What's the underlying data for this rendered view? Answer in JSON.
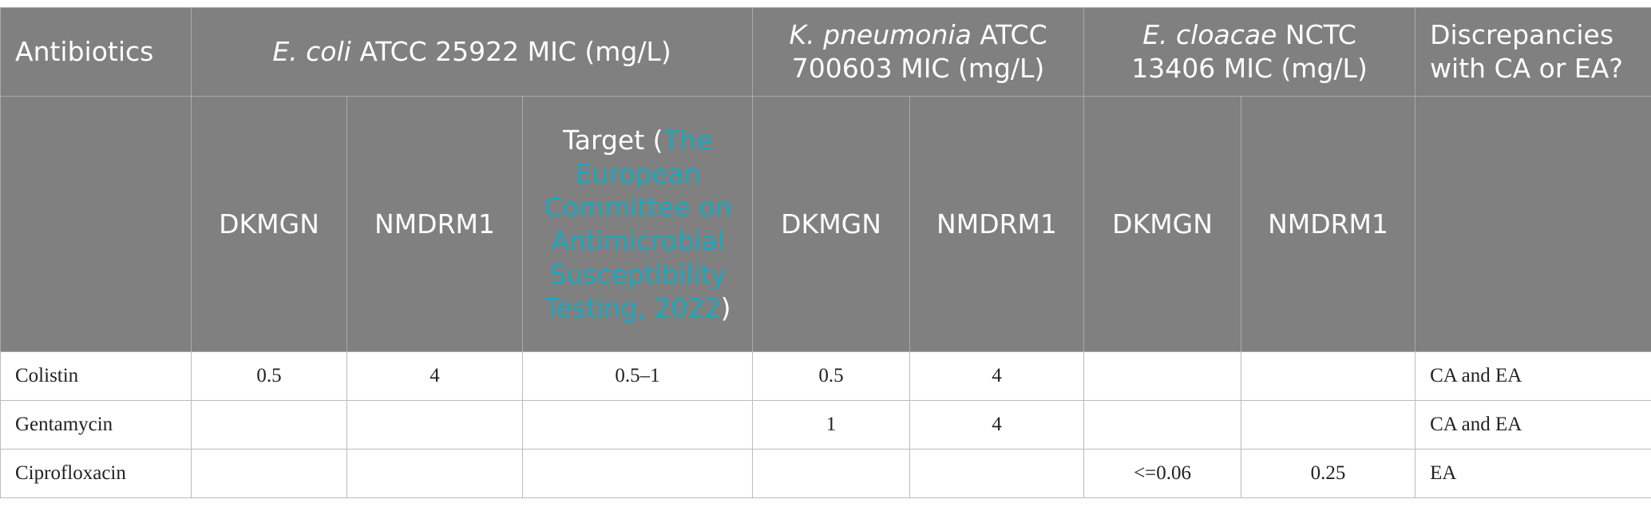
{
  "table": {
    "header": {
      "antibiotics": "Antibiotics",
      "groups": [
        {
          "species": "E. coli",
          "rest": " ATCC 25922 MIC (mg/L)"
        },
        {
          "species": "K. pneumonia",
          "rest": " ATCC 700603 MIC (mg/L)"
        },
        {
          "species": "E. cloacae",
          "rest": " NCTC 13406 MIC (mg/L)"
        }
      ],
      "discrepancies": "Discrepancies with CA or EA?",
      "subheaders": [
        "DKMGN",
        "NMDRM1",
        "DKMGN",
        "NMDRM1",
        "DKMGN",
        "NMDRM1"
      ],
      "target": {
        "before": "Target (",
        "link": "The European Committee on Antimicrobial Susceptibility Testing, 2022",
        "after": ")"
      }
    },
    "rows": [
      [
        "Colistin",
        "0.5",
        "4",
        "0.5–1",
        "0.5",
        "4",
        null,
        null,
        "CA and EA"
      ],
      [
        "Gentamycin",
        null,
        null,
        null,
        "1",
        "4",
        null,
        null,
        "CA and EA"
      ],
      [
        "Ciprofloxacin",
        null,
        null,
        null,
        null,
        null,
        "<=0.06",
        "0.25",
        "EA"
      ]
    ]
  }
}
